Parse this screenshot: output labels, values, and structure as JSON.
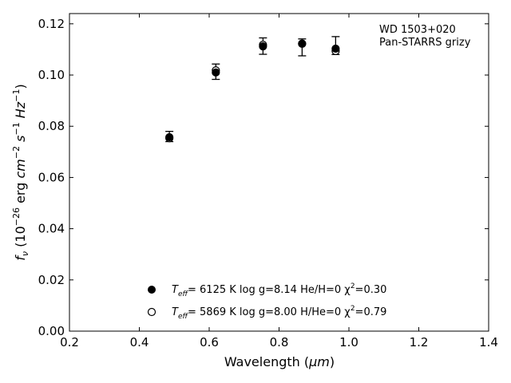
{
  "chart_data": {
    "type": "scatter",
    "xlabel_main": "Wavelength (",
    "xlabel_unit": "μm",
    "xlabel_close": ")",
    "ylabel_parts": [
      "f",
      "ν",
      " (10",
      "−26",
      " erg ",
      "cm",
      "−2",
      " s",
      "−1",
      " Hz",
      "−1",
      ")"
    ],
    "xlim": [
      0.2,
      1.4
    ],
    "ylim": [
      0.0,
      0.124
    ],
    "xticks": [
      "0.2",
      "0.4",
      "0.6",
      "0.8",
      "1.0",
      "1.2",
      "1.4"
    ],
    "yticks": [
      "0.00",
      "0.02",
      "0.04",
      "0.06",
      "0.08",
      "0.10",
      "0.12"
    ],
    "xtick_values": [
      0.2,
      0.4,
      0.6,
      0.8,
      1.0,
      1.2,
      1.4
    ],
    "ytick_values": [
      0.0,
      0.02,
      0.04,
      0.06,
      0.08,
      0.1,
      0.12
    ],
    "annotation": [
      "WD 1503+020",
      "Pan-STARRS grizy"
    ],
    "observed": {
      "x": [
        0.486,
        0.619,
        0.754,
        0.866,
        0.962
      ],
      "y": [
        0.076,
        0.1013,
        0.1113,
        0.1108,
        0.1115
      ],
      "err": [
        0.002,
        0.003,
        0.0032,
        0.0033,
        0.0035
      ]
    },
    "series": [
      {
        "marker": "filled",
        "teff_label": "T",
        "teff_sub": "eff",
        "desc": "=  6125 K  log g=8.14  He/H=0  χ",
        "chi_sup": "2",
        "chi_val": "=0.30",
        "x": [
          0.486,
          0.619,
          0.754,
          0.866,
          0.962
        ],
        "y": [
          0.0757,
          0.101,
          0.1112,
          0.1122,
          0.1103
        ]
      },
      {
        "marker": "open",
        "teff_label": "T",
        "teff_sub": "eff",
        "desc": "=  5869 K  log g=8.00  H/He=0  χ",
        "chi_sup": "2",
        "chi_val": "=0.79",
        "x": [
          0.486,
          0.619,
          0.754,
          0.866,
          0.962
        ],
        "y": [
          0.0753,
          0.1018,
          0.1118,
          0.1123,
          0.1094
        ]
      }
    ],
    "legend_position": "lower-center",
    "grid": false
  }
}
